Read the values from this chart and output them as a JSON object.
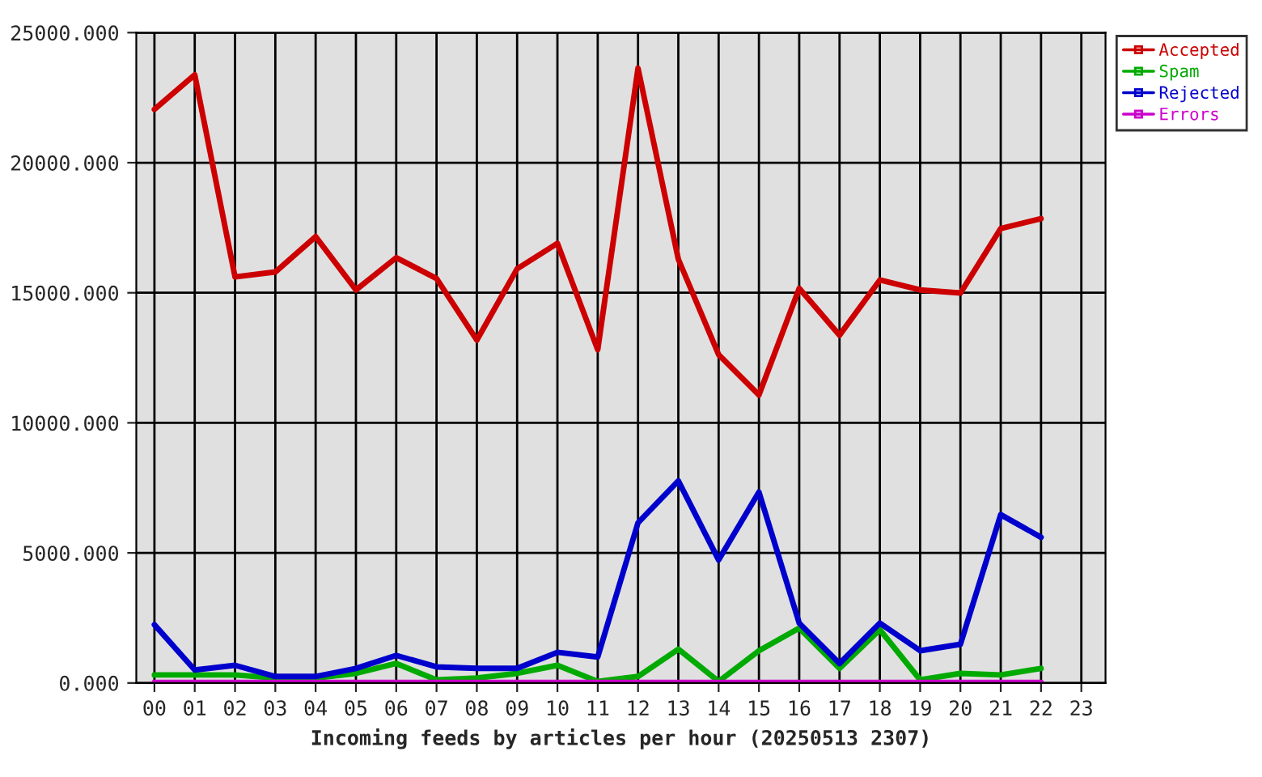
{
  "chart_data": {
    "type": "line",
    "xlabel": "Incoming feeds by articles per hour (20250513 2307)",
    "categories": [
      "00",
      "01",
      "02",
      "03",
      "04",
      "05",
      "06",
      "07",
      "08",
      "09",
      "10",
      "11",
      "12",
      "13",
      "14",
      "15",
      "16",
      "17",
      "18",
      "19",
      "20",
      "21",
      "22",
      "23"
    ],
    "series": [
      {
        "name": "Accepted",
        "color": "#cc0000",
        "values": [
          22050,
          23380,
          15610,
          15800,
          17160,
          15110,
          16350,
          15550,
          13180,
          15920,
          16900,
          12810,
          23630,
          16290,
          12620,
          11070,
          15170,
          13370,
          15490,
          15110,
          14990,
          17470,
          17850,
          null
        ]
      },
      {
        "name": "Spam",
        "color": "#00aa00",
        "values": [
          310,
          310,
          310,
          190,
          190,
          370,
          750,
          120,
          190,
          370,
          680,
          60,
          250,
          1300,
          60,
          1240,
          2110,
          560,
          2050,
          120,
          370,
          310,
          560,
          null
        ]
      },
      {
        "name": "Rejected",
        "color": "#0000cc",
        "values": [
          2240,
          500,
          680,
          250,
          250,
          560,
          1060,
          620,
          560,
          560,
          1180,
          1000,
          6160,
          7770,
          4730,
          7340,
          2300,
          750,
          2300,
          1240,
          1490,
          6470,
          5600,
          null
        ]
      },
      {
        "name": "Errors",
        "color": "#cc00cc",
        "values": [
          20,
          20,
          20,
          20,
          20,
          20,
          20,
          20,
          20,
          20,
          20,
          20,
          20,
          20,
          20,
          20,
          20,
          20,
          20,
          20,
          20,
          20,
          20,
          null
        ]
      }
    ],
    "ylim": [
      0,
      25000
    ],
    "yticks": [
      {
        "value": 0,
        "label": "0.000"
      },
      {
        "value": 5000,
        "label": "5000.000"
      },
      {
        "value": 10000,
        "label": "10000.000"
      },
      {
        "value": 15000,
        "label": "15000.000"
      },
      {
        "value": 20000,
        "label": "20000.000"
      },
      {
        "value": 25000,
        "label": "25000.000"
      }
    ],
    "grid": true,
    "legend": "top right",
    "marker": "none",
    "line_style": "solid"
  }
}
